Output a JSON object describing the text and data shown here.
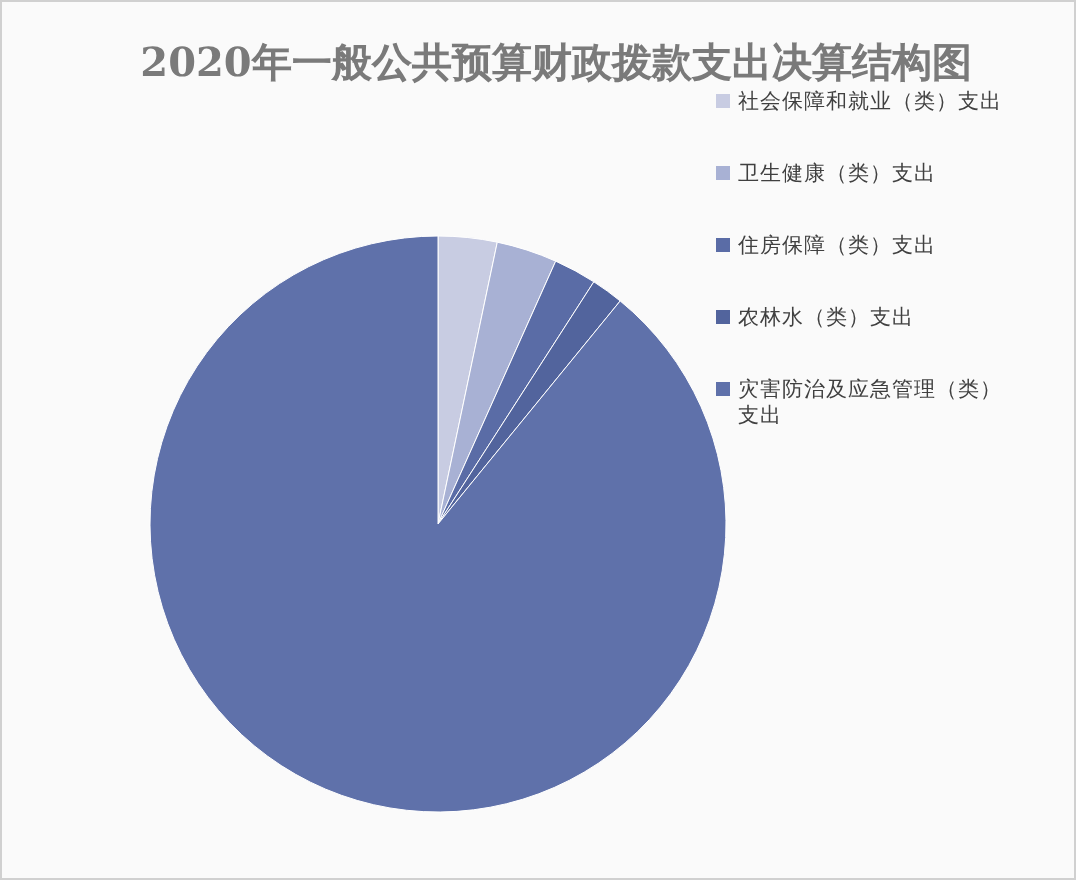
{
  "chart_data": {
    "type": "pie",
    "title": "2020年一般公共预算财政拨款支出决算结构图",
    "categories": [
      "社会保障和就业（类）支出",
      "卫生健康（类）支出",
      "住房保障（类）支出",
      "农林水（类）支出",
      "灾害防治及应急管理（类）支出"
    ],
    "values": [
      3.3,
      3.4,
      2.4,
      1.8,
      89.1
    ],
    "colors": [
      "#c8cce2",
      "#a8b1d4",
      "#5a6ca6",
      "#52649d",
      "#5f71aa"
    ],
    "legend": "top right"
  }
}
